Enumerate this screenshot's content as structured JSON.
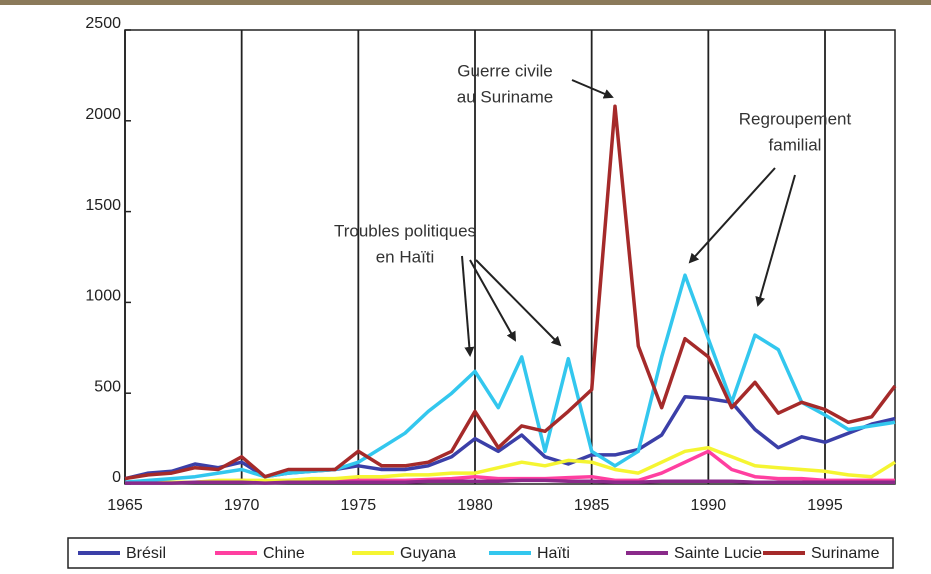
{
  "chart_data": {
    "type": "line",
    "x": [
      1965,
      1966,
      1967,
      1968,
      1969,
      1970,
      1971,
      1972,
      1973,
      1974,
      1975,
      1976,
      1977,
      1978,
      1979,
      1980,
      1981,
      1982,
      1983,
      1984,
      1985,
      1986,
      1987,
      1988,
      1989,
      1990,
      1991,
      1992,
      1993,
      1994,
      1995,
      1996,
      1997,
      1998
    ],
    "xlim": [
      1965,
      1998
    ],
    "xticks": [
      1965,
      1970,
      1975,
      1980,
      1985,
      1990,
      1995
    ],
    "ylim": [
      0,
      2500
    ],
    "yticks": [
      0,
      500,
      1000,
      1500,
      2000,
      2500
    ],
    "grid": true,
    "legend": "bottom",
    "series": [
      {
        "name": "Brésil",
        "color": "#3b3fa8",
        "values": [
          30,
          60,
          70,
          110,
          90,
          120,
          40,
          60,
          70,
          80,
          100,
          80,
          80,
          100,
          150,
          250,
          180,
          270,
          150,
          110,
          160,
          160,
          190,
          270,
          480,
          470,
          450,
          300,
          200,
          260,
          230,
          280,
          330,
          360
        ]
      },
      {
        "name": "Chine",
        "color": "#ff3fa0",
        "values": [
          10,
          10,
          10,
          10,
          15,
          20,
          10,
          15,
          15,
          20,
          20,
          20,
          20,
          25,
          30,
          40,
          30,
          30,
          30,
          35,
          40,
          20,
          20,
          60,
          120,
          180,
          80,
          40,
          30,
          30,
          20,
          20,
          20,
          20
        ]
      },
      {
        "name": "Guyana",
        "color": "#f5f532",
        "values": [
          10,
          10,
          10,
          10,
          20,
          20,
          20,
          20,
          30,
          30,
          40,
          40,
          50,
          50,
          60,
          60,
          90,
          120,
          100,
          130,
          120,
          80,
          60,
          120,
          180,
          200,
          150,
          100,
          90,
          80,
          70,
          50,
          40,
          120
        ]
      },
      {
        "name": "Haïti",
        "color": "#33c7ee",
        "values": [
          10,
          20,
          30,
          40,
          60,
          80,
          40,
          60,
          70,
          80,
          120,
          200,
          280,
          400,
          500,
          620,
          420,
          700,
          180,
          690,
          180,
          100,
          180,
          700,
          1150,
          800,
          450,
          820,
          740,
          450,
          380,
          300,
          320,
          340
        ]
      },
      {
        "name": "Sainte Lucie",
        "color": "#8a2a8a",
        "values": [
          5,
          5,
          5,
          10,
          10,
          10,
          5,
          10,
          10,
          10,
          10,
          10,
          10,
          15,
          15,
          15,
          15,
          20,
          20,
          15,
          15,
          10,
          10,
          15,
          15,
          15,
          15,
          10,
          10,
          10,
          10,
          10,
          10,
          10
        ]
      },
      {
        "name": "Suriname",
        "color": "#a52a2a",
        "values": [
          30,
          50,
          60,
          90,
          80,
          150,
          40,
          80,
          80,
          80,
          180,
          100,
          100,
          120,
          180,
          400,
          200,
          320,
          290,
          400,
          520,
          2080,
          760,
          420,
          800,
          700,
          420,
          560,
          390,
          450,
          410,
          340,
          370,
          540
        ]
      }
    ],
    "annotations": [
      {
        "lines": [
          "Troubles politiques",
          "en Haïti"
        ]
      },
      {
        "lines": [
          "Guerre civile",
          "au Suriname"
        ]
      },
      {
        "lines": [
          "Regroupement",
          "familial"
        ]
      }
    ]
  }
}
